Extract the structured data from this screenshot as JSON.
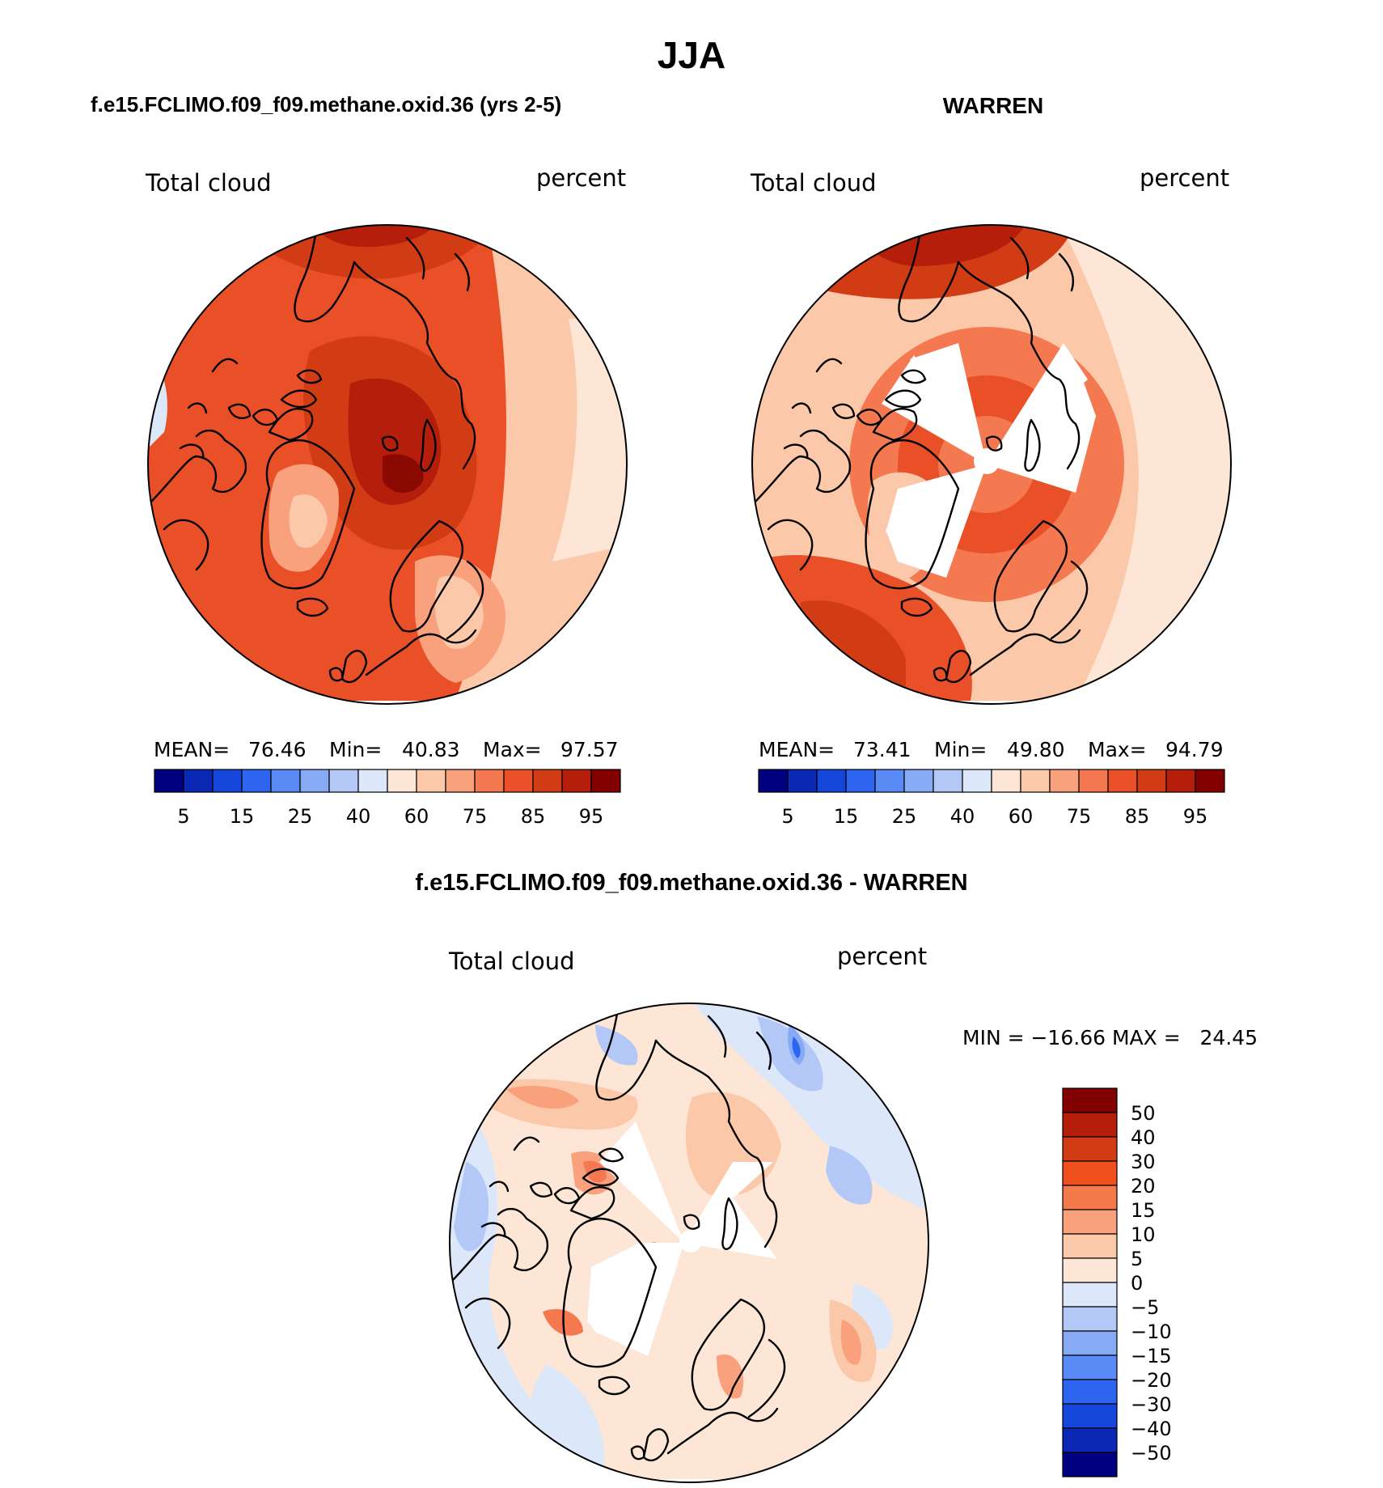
{
  "title": "JJA",
  "panels": [
    {
      "id": "model",
      "heading": "f.e15.FCLIMO.f09_f09.methane.oxid.36 (yrs 2-5)",
      "variable": "Total cloud",
      "units": "percent",
      "stats": {
        "mean_label": "MEAN=",
        "mean": "76.46",
        "min_label": "Min=",
        "min": "40.83",
        "max_label": "Max=",
        "max": "97.57"
      },
      "field": "model"
    },
    {
      "id": "obs",
      "heading": "WARREN",
      "variable": "Total cloud",
      "units": "percent",
      "stats": {
        "mean_label": "MEAN=",
        "mean": "73.41",
        "min_label": "Min=",
        "min": "49.80",
        "max_label": "Max=",
        "max": "94.79"
      },
      "field": "obs"
    },
    {
      "id": "diff",
      "heading": "f.e15.FCLIMO.f09_f09.methane.oxid.36 - WARREN",
      "variable": "Total cloud",
      "units": "percent",
      "minmax_text": "MIN = −16.66 MAX =   24.45",
      "field": "diff"
    }
  ],
  "abs_colorbar": {
    "colors": [
      "#000080",
      "#0a28b4",
      "#1446dc",
      "#2d64f0",
      "#5a8af5",
      "#87aaf5",
      "#b4c8f8",
      "#dce8fa",
      "#fde6d6",
      "#fcc8aa",
      "#f9a07c",
      "#f47850",
      "#ea5028",
      "#d23c14",
      "#b41e0a",
      "#820000"
    ],
    "tick_labels": [
      "5",
      "15",
      "25",
      "40",
      "60",
      "75",
      "85",
      "95"
    ]
  },
  "diff_colorbar": {
    "colors_top_to_bottom": [
      "#820000",
      "#b41e0a",
      "#d23c14",
      "#f0501e",
      "#f47a4c",
      "#f9a07c",
      "#fcc8aa",
      "#fde6d6",
      "#dce8fa",
      "#b4c8f8",
      "#87aaf5",
      "#5a8af5",
      "#2d64f0",
      "#1446dc",
      "#0a28b4",
      "#000080"
    ],
    "tick_labels": [
      "50",
      "40",
      "30",
      "20",
      "15",
      "10",
      "5",
      "0",
      "−5",
      "−10",
      "−15",
      "−20",
      "−30",
      "−40",
      "−50"
    ]
  }
}
